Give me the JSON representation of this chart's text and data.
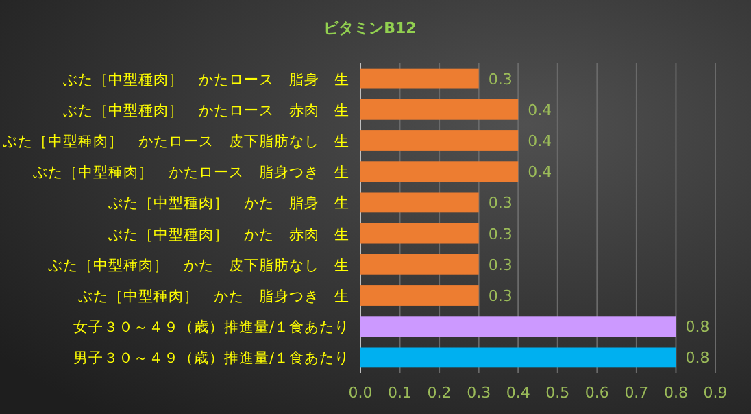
{
  "chart_data": {
    "type": "bar",
    "orientation": "horizontal",
    "title": "ビタミンB12",
    "categories": [
      "ぶた［中型種肉］　かたロース　脂身　生",
      "ぶた［中型種肉］　かたロース　赤肉　生",
      "ぶた［中型種肉］　かたロース　皮下脂肪なし　生",
      "ぶた［中型種肉］　かたロース　脂身つき　生",
      "ぶた［中型種肉］　かた　脂身　生",
      "ぶた［中型種肉］　かた　赤肉　生",
      "ぶた［中型種肉］　かた　皮下脂肪なし　生",
      "ぶた［中型種肉］　かた　脂身つき　生",
      "女子３０～４９（歳）推進量/１食あたり",
      "男子３０～４９（歳）推進量/１食あたり"
    ],
    "values": [
      0.3,
      0.4,
      0.4,
      0.4,
      0.3,
      0.3,
      0.3,
      0.3,
      0.8,
      0.8
    ],
    "colors": [
      "#ed7d31",
      "#ed7d31",
      "#ed7d31",
      "#ed7d31",
      "#ed7d31",
      "#ed7d31",
      "#ed7d31",
      "#ed7d31",
      "#cc99ff",
      "#00b0f0"
    ],
    "xlim": [
      0,
      0.9
    ],
    "xticks": [
      {
        "value": 0,
        "label": "0.0"
      },
      0.1,
      0.2,
      0.3,
      0.4,
      0.5,
      0.6,
      0.7,
      0.8,
      0.9
    ],
    "grid": "x",
    "data_labels": true
  }
}
